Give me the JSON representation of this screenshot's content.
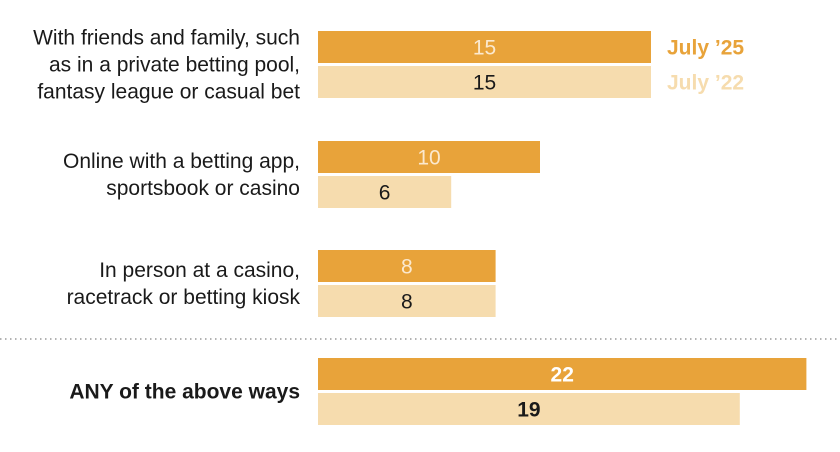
{
  "chart_data": {
    "type": "bar",
    "orientation": "horizontal",
    "categories": [
      [
        "With friends and family, such",
        "as in a private betting pool,",
        "fantasy league or casual bet"
      ],
      [
        "Online with a betting app,",
        "sportsbook or casino"
      ],
      [
        "In person at a casino,",
        "racetrack or betting kiosk"
      ],
      [
        "ANY of the above ways"
      ]
    ],
    "series": [
      {
        "name": "July ’25",
        "color": "#e8a33a",
        "label_color": "#fbe9cf",
        "values": [
          15,
          10,
          8,
          22
        ]
      },
      {
        "name": "July ’22",
        "color": "#f6dcae",
        "label_color": "#1a1a1a",
        "values": [
          15,
          6,
          8,
          19
        ]
      }
    ],
    "total_color_july25_label": "#1a1a1a",
    "legend_placement": "right of top bars",
    "separator_before_last": true,
    "xlim": [
      0,
      22
    ],
    "grid": false,
    "title": "",
    "xlabel": "",
    "ylabel": ""
  }
}
